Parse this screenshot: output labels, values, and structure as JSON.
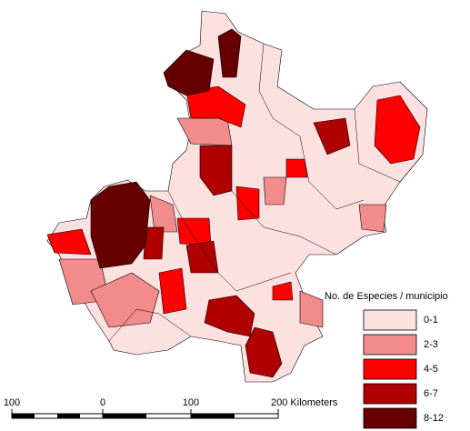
{
  "legend": {
    "title": "No. de Especies / municipio",
    "classes": [
      {
        "label": "0-1",
        "color": "#fde1e1"
      },
      {
        "label": "2-3",
        "color": "#f28b8b"
      },
      {
        "label": "4-5",
        "color": "#ff0000"
      },
      {
        "label": "6-7",
        "color": "#b00000"
      },
      {
        "label": "8-12",
        "color": "#660000"
      }
    ]
  },
  "scale_bar": {
    "labels": [
      "100",
      "0",
      "100",
      "200 Kilometers"
    ]
  }
}
